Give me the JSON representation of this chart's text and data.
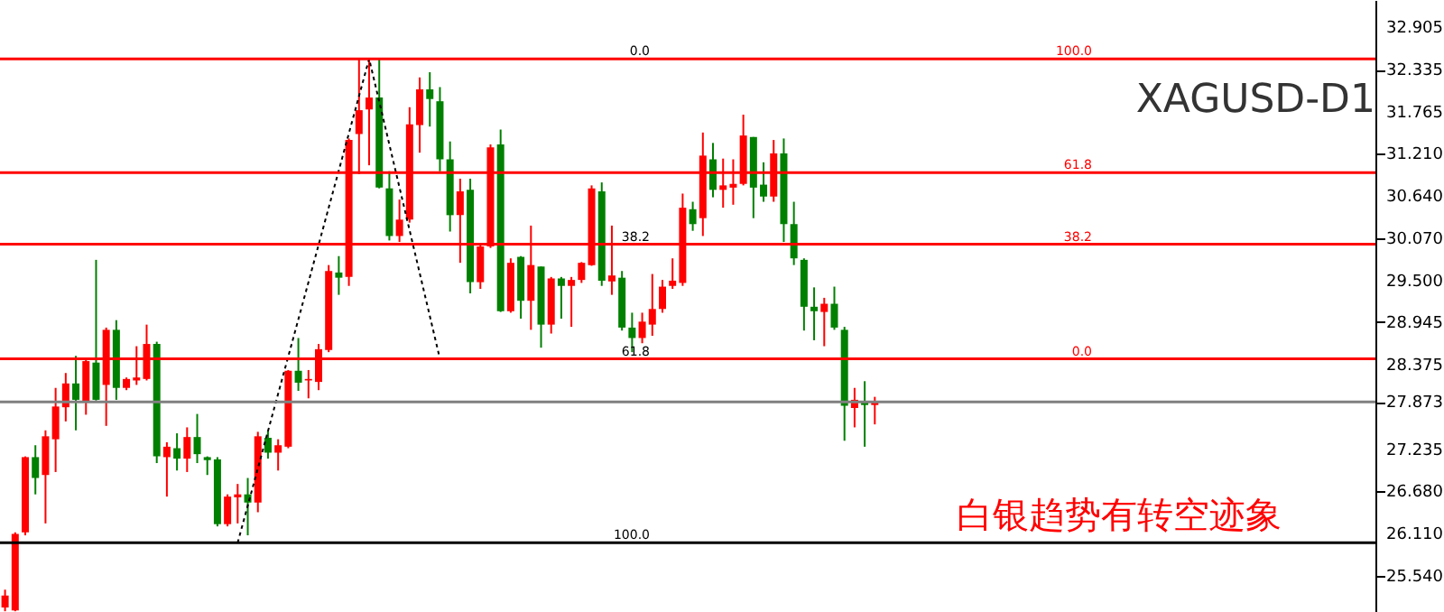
{
  "chart_data": {
    "type": "candlestick",
    "title": "XAGUSD-D1",
    "annotations": [
      "白银趋势有转空迹象",
      {
        "text": "0.0",
        "y": 32.48
      },
      {
        "text": "38.2",
        "y": 29.98
      },
      {
        "text": "61.8",
        "y": 28.45
      },
      {
        "text": "100.0",
        "y": 25.98
      },
      {
        "text": "100.0",
        "y": 32.48
      },
      {
        "text": "61.8",
        "y": 30.95
      },
      {
        "text": "38.2",
        "y": 29.99
      },
      {
        "text": "0.0",
        "y": 28.45
      }
    ],
    "categories": [
      null,
      null,
      null,
      null,
      null,
      null,
      null,
      null,
      null,
      null,
      null,
      null,
      null,
      null,
      null,
      null,
      null,
      null,
      null,
      null,
      null,
      null,
      null,
      null,
      null,
      null,
      null,
      null,
      null,
      null,
      null,
      null,
      null,
      null,
      null,
      null,
      null,
      null,
      null,
      null,
      null,
      null,
      null,
      null,
      null,
      null,
      null,
      null,
      null,
      null,
      null,
      null,
      null,
      null,
      null,
      null,
      null,
      null,
      null,
      null,
      null,
      null,
      null,
      null,
      null,
      null,
      null,
      null,
      null,
      null,
      null,
      null,
      null,
      null,
      null,
      null,
      null,
      null,
      null,
      null,
      null,
      null,
      null,
      null,
      null,
      null,
      null,
      null,
      null,
      null,
      null,
      null,
      null,
      null,
      null,
      null,
      null,
      null,
      null,
      null,
      null,
      null,
      null,
      null,
      null,
      null,
      null,
      null,
      null,
      null,
      null,
      null,
      null,
      null,
      null,
      null,
      null,
      null,
      null,
      null,
      null,
      null,
      null,
      null,
      null,
      null,
      null,
      null,
      null,
      null,
      null,
      null,
      null,
      null,
      null,
      null
    ],
    "ohlc": [
      [
        25.11,
        25.35,
        25.06,
        25.27
      ],
      [
        25.07,
        26.12,
        25.06,
        26.1
      ],
      [
        26.12,
        27.14,
        26.08,
        27.13
      ],
      [
        27.13,
        27.29,
        26.63,
        26.85
      ],
      [
        26.89,
        27.49,
        26.24,
        27.41
      ],
      [
        27.37,
        28.06,
        26.93,
        27.81
      ],
      [
        27.8,
        28.26,
        27.61,
        28.12
      ],
      [
        28.12,
        28.49,
        27.49,
        27.9
      ],
      [
        27.87,
        28.46,
        27.7,
        28.42
      ],
      [
        28.4,
        29.78,
        27.89,
        27.9
      ],
      [
        28.1,
        28.87,
        27.55,
        28.84
      ],
      [
        28.84,
        28.97,
        27.9,
        28.06
      ],
      [
        28.06,
        28.2,
        28.03,
        28.18
      ],
      [
        28.16,
        28.62,
        28.1,
        28.2
      ],
      [
        28.18,
        28.91,
        28.16,
        28.65
      ],
      [
        28.65,
        28.68,
        27.05,
        27.14
      ],
      [
        27.13,
        27.33,
        26.6,
        27.27
      ],
      [
        27.25,
        27.45,
        26.95,
        27.11
      ],
      [
        27.11,
        27.53,
        26.93,
        27.4
      ],
      [
        27.4,
        27.71,
        27.05,
        27.17
      ],
      [
        27.13,
        27.14,
        26.89,
        27.09
      ],
      [
        27.1,
        27.13,
        26.2,
        26.23
      ],
      [
        26.23,
        26.63,
        26.2,
        26.6
      ],
      [
        26.59,
        26.77,
        26.24,
        26.63
      ],
      [
        26.63,
        26.85,
        26.08,
        26.52
      ],
      [
        26.52,
        27.47,
        26.39,
        27.41
      ],
      [
        27.39,
        27.49,
        27.11,
        27.19
      ],
      [
        27.19,
        27.37,
        26.95,
        27.29
      ],
      [
        27.27,
        28.3,
        27.25,
        28.29
      ],
      [
        28.29,
        28.73,
        28.02,
        28.13
      ],
      [
        28.16,
        28.3,
        27.92,
        28.18
      ],
      [
        28.14,
        28.65,
        28.03,
        28.58
      ],
      [
        28.57,
        29.71,
        28.54,
        29.63
      ],
      [
        29.61,
        29.83,
        29.31,
        29.54
      ],
      [
        29.55,
        31.41,
        29.43,
        31.39
      ],
      [
        31.47,
        32.48,
        30.93,
        31.79
      ],
      [
        31.8,
        32.48,
        31.05,
        31.96
      ],
      [
        31.96,
        32.48,
        30.74,
        30.75
      ],
      [
        30.74,
        30.97,
        30.04,
        30.1
      ],
      [
        30.1,
        30.59,
        30.02,
        30.32
      ],
      [
        30.32,
        31.83,
        30.28,
        31.6
      ],
      [
        31.59,
        32.23,
        31.22,
        32.07
      ],
      [
        32.07,
        32.3,
        31.57,
        31.94
      ],
      [
        31.91,
        32.1,
        30.97,
        31.13
      ],
      [
        31.13,
        31.37,
        30.16,
        30.38
      ],
      [
        30.38,
        30.87,
        29.74,
        30.7
      ],
      [
        30.72,
        30.87,
        29.33,
        29.48
      ],
      [
        29.48,
        30.0,
        29.39,
        29.96
      ],
      [
        29.96,
        31.33,
        29.94,
        31.29
      ],
      [
        31.33,
        31.53,
        29.08,
        29.09
      ],
      [
        29.09,
        29.8,
        29.07,
        29.74
      ],
      [
        29.82,
        29.83,
        28.99,
        29.23
      ],
      [
        29.23,
        30.24,
        28.84,
        29.71
      ],
      [
        29.69,
        29.69,
        28.6,
        28.91
      ],
      [
        28.91,
        29.55,
        28.79,
        29.53
      ],
      [
        29.53,
        29.55,
        28.99,
        29.43
      ],
      [
        29.43,
        29.55,
        28.88,
        29.51
      ],
      [
        29.51,
        29.75,
        29.47,
        29.74
      ],
      [
        29.71,
        30.78,
        29.7,
        30.74
      ],
      [
        30.7,
        30.82,
        29.43,
        29.5
      ],
      [
        29.49,
        30.24,
        29.31,
        29.57
      ],
      [
        29.54,
        29.63,
        28.83,
        28.87
      ],
      [
        28.87,
        29.07,
        28.54,
        28.73
      ],
      [
        28.73,
        29.07,
        28.66,
        28.95
      ],
      [
        28.91,
        29.59,
        28.76,
        29.12
      ],
      [
        29.12,
        29.51,
        29.07,
        29.42
      ],
      [
        29.43,
        29.8,
        29.39,
        29.5
      ],
      [
        29.47,
        30.67,
        29.43,
        30.48
      ],
      [
        30.46,
        30.56,
        30.17,
        30.26
      ],
      [
        30.34,
        31.49,
        30.1,
        31.18
      ],
      [
        31.13,
        31.35,
        30.62,
        30.72
      ],
      [
        30.72,
        31.14,
        30.48,
        30.78
      ],
      [
        30.75,
        31.13,
        30.52,
        30.8
      ],
      [
        30.8,
        31.73,
        30.78,
        31.45
      ],
      [
        31.43,
        31.43,
        30.34,
        30.75
      ],
      [
        30.79,
        31.09,
        30.56,
        30.63
      ],
      [
        30.63,
        31.39,
        30.56,
        31.21
      ],
      [
        31.21,
        31.41,
        30.02,
        30.26
      ],
      [
        30.26,
        30.56,
        29.71,
        29.8
      ],
      [
        29.78,
        29.8,
        28.83,
        29.15
      ],
      [
        29.15,
        29.41,
        28.7,
        29.09
      ],
      [
        29.08,
        29.27,
        28.62,
        29.19
      ],
      [
        29.19,
        29.42,
        28.84,
        28.87
      ],
      [
        28.84,
        28.88,
        27.35,
        27.82
      ],
      [
        27.79,
        28.06,
        27.53,
        27.9
      ],
      [
        27.88,
        28.15,
        27.27,
        27.83
      ],
      [
        27.83,
        27.94,
        27.57,
        27.87
      ],
      null,
      null,
      null,
      null,
      null,
      null,
      null,
      null,
      null,
      null,
      null,
      null,
      null,
      null,
      null,
      null,
      null,
      null,
      null,
      null,
      null,
      null,
      null,
      null,
      null,
      null,
      null,
      null,
      null,
      null,
      null,
      null,
      null,
      null,
      null,
      null,
      null,
      null,
      null,
      null,
      null,
      null,
      null,
      null,
      null,
      null,
      null,
      null,
      null
    ],
    "colors": [
      "#ff0000",
      "#ff0000",
      "#ff0000",
      "#008000",
      "#ff0000",
      "#ff0000",
      "#ff0000",
      "#008000",
      "#ff0000",
      "#008000",
      "#ff0000",
      "#008000",
      "#ff0000",
      "#ff0000",
      "#ff0000",
      "#008000",
      "#ff0000",
      "#008000",
      "#ff0000",
      "#008000",
      "#008000",
      "#008000",
      "#ff0000",
      "#ff0000",
      "#008000",
      "#ff0000",
      "#008000",
      "#ff0000",
      "#ff0000",
      "#008000",
      "#ff0000",
      "#ff0000",
      "#ff0000",
      "#008000",
      "#ff0000",
      "#ff0000",
      "#ff0000",
      "#008000",
      "#008000",
      "#ff0000",
      "#ff0000",
      "#ff0000",
      "#008000",
      "#008000",
      "#008000",
      "#ff0000",
      "#008000",
      "#ff0000",
      "#ff0000",
      "#008000",
      "#ff0000",
      "#008000",
      "#ff0000",
      "#008000",
      "#ff0000",
      "#008000",
      "#ff0000",
      "#ff0000",
      "#ff0000",
      "#008000",
      "#ff0000",
      "#008000",
      "#008000",
      "#ff0000",
      "#ff0000",
      "#ff0000",
      "#ff0000",
      "#ff0000",
      "#008000",
      "#ff0000",
      "#008000",
      "#ff0000",
      "#ff0000",
      "#ff0000",
      "#008000",
      "#008000",
      "#ff0000",
      "#008000",
      "#008000",
      "#008000",
      "#008000",
      "#ff0000",
      "#008000",
      "#008000",
      "#ff0000",
      "#008000",
      "#ff0000",
      null,
      null,
      null,
      null,
      null,
      null,
      null,
      null,
      null,
      null,
      null,
      null,
      null,
      null,
      null,
      null,
      null,
      null,
      null,
      null,
      null,
      null,
      null,
      null,
      null,
      null,
      null,
      null,
      null,
      null,
      null,
      null,
      null,
      null,
      null,
      null,
      null,
      null,
      null,
      null,
      null,
      null,
      null,
      null,
      null,
      null,
      null,
      null,
      null
    ],
    "series": [
      {
        "type": "line",
        "color": "#000000",
        "line_style": "dotted",
        "values": [
          null,
          null,
          null,
          null,
          null,
          null,
          null,
          null,
          null,
          null,
          null,
          null,
          null,
          null,
          null,
          null,
          null,
          null,
          null,
          null,
          null,
          null,
          null,
          25.98,
          null,
          null,
          null,
          null,
          null,
          null,
          null,
          null,
          null,
          null,
          null,
          null,
          32.48,
          null,
          null,
          null,
          null,
          null,
          null,
          28.45,
          null,
          null,
          null,
          null,
          null,
          null,
          null,
          null,
          null,
          null,
          null,
          null,
          null,
          null,
          null,
          null,
          null,
          null,
          null,
          null,
          null,
          null,
          null,
          null,
          null,
          null,
          null,
          null,
          null,
          null,
          null,
          null,
          null,
          null,
          null,
          null,
          null,
          null,
          null,
          null,
          null,
          null,
          null,
          null,
          null,
          null,
          null,
          null,
          null,
          null,
          null,
          null,
          null,
          null,
          null,
          null,
          null,
          null,
          null,
          null,
          null,
          null,
          null,
          null,
          null,
          null,
          null,
          null,
          null,
          null,
          null,
          null,
          null,
          null,
          null,
          null,
          null,
          null,
          null,
          null,
          null,
          null,
          null,
          null,
          null,
          null,
          null,
          null,
          null,
          null,
          null,
          null
        ]
      }
    ],
    "ref_lines": [
      {
        "axis": "y",
        "value": 25.98,
        "color": "#000000"
      },
      {
        "axis": "y",
        "value": 32.48,
        "color": "#ff0000"
      },
      {
        "axis": "y",
        "value": 30.95,
        "color": "#ff0000"
      },
      {
        "axis": "y",
        "value": 29.99,
        "color": "#ff0000"
      },
      {
        "axis": "y",
        "value": 28.45,
        "color": "#ff0000"
      },
      {
        "axis": "y",
        "value": 27.873,
        "color": "#808080"
      }
    ],
    "ylim": [
      25.05,
      33.27
    ],
    "yticks": [
      32.905,
      32.335,
      31.765,
      {
        "value": 31.21,
        "label": "31.210"
      },
      {
        "value": 30.64,
        "label": "30.640"
      },
      {
        "value": 30.07,
        "label": "30.070"
      },
      {
        "value": 29.5,
        "label": "29.500"
      },
      28.945,
      28.375,
      27.873,
      27.235,
      {
        "value": 26.68,
        "label": "26.680"
      },
      {
        "value": 26.11,
        "label": "26.110"
      },
      {
        "value": 25.54,
        "label": "25.540"
      }
    ],
    "tick_labels": "y",
    "grid": false
  }
}
